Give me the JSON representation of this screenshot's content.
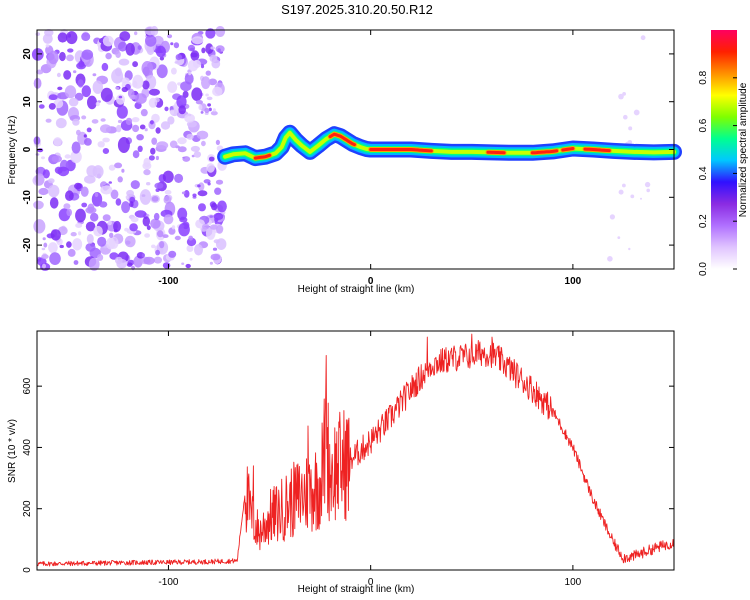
{
  "title": "S197.2025.310.20.50.R12",
  "chart_data": [
    {
      "type": "heatmap",
      "xlabel": "Height of straight line (km)",
      "ylabel": "Frequency (Hz)",
      "xlim": [
        -165,
        150
      ],
      "ylim": [
        -25,
        25
      ],
      "x_ticks": [
        -100,
        0,
        100
      ],
      "y_ticks": [
        -20,
        -10,
        0,
        10,
        20
      ],
      "colorbar": {
        "label": "Normalized spectral amplitude",
        "range": [
          0,
          1
        ],
        "ticks": [
          0.0,
          0.2,
          0.4,
          0.6,
          0.8
        ],
        "colormap": [
          "#ffffff",
          "#e0c4ff",
          "#b070ff",
          "#8a2be2",
          "#3010ff",
          "#00c8ff",
          "#00ff90",
          "#7fff00",
          "#ffff00",
          "#ff9000",
          "#ff2000",
          "#ff0060"
        ]
      },
      "noise_region_x": [
        -165,
        -73
      ],
      "ridge": {
        "x": [
          -72,
          -68,
          -62,
          -57,
          -52,
          -47,
          -44,
          -42,
          -40,
          -37,
          -34,
          -30,
          -26,
          -22,
          -18,
          -15,
          -12,
          -9,
          -5,
          -2,
          0,
          10,
          20,
          30,
          40,
          50,
          60,
          70,
          80,
          90,
          100,
          110,
          120,
          130,
          140,
          150
        ],
        "freq": [
          -1.5,
          -1.0,
          -0.8,
          -1.8,
          -1.5,
          -0.8,
          0.5,
          2.5,
          3.5,
          2.0,
          0.8,
          -0.5,
          0.8,
          2.2,
          3.2,
          2.8,
          2.0,
          1.2,
          0.5,
          0.1,
          0.0,
          0.0,
          0.0,
          -0.3,
          -0.5,
          -0.5,
          -0.6,
          -0.7,
          -0.7,
          -0.4,
          0.2,
          0.0,
          -0.3,
          -0.5,
          -0.6,
          -0.5
        ],
        "peak_amplitude_segments": [
          [
            -57,
            -50
          ],
          [
            -20,
            -8
          ],
          [
            0,
            30
          ],
          [
            58,
            66
          ],
          [
            80,
            92
          ],
          [
            95,
            100
          ],
          [
            106,
            118
          ]
        ]
      }
    },
    {
      "type": "line",
      "xlabel": "Height of straight line (km)",
      "ylabel": "SNR (10 * v/v)",
      "xlim": [
        -165,
        150
      ],
      "ylim": [
        0,
        780
      ],
      "x_ticks": [
        -100,
        0,
        100
      ],
      "y_ticks": [
        0,
        200,
        400,
        600
      ],
      "color": "#ee2222",
      "series": [
        {
          "name": "SNR",
          "x": [
            -165,
            -140,
            -120,
            -100,
            -80,
            -66,
            -62,
            -59,
            -55,
            -50,
            -45,
            -40,
            -35,
            -30,
            -25,
            -22,
            -20,
            -15,
            -10,
            -5,
            0,
            10,
            20,
            30,
            40,
            50,
            55,
            60,
            65,
            70,
            75,
            80,
            90,
            100,
            110,
            120,
            125,
            130,
            140,
            150
          ],
          "values": [
            20,
            22,
            24,
            25,
            27,
            30,
            260,
            170,
            120,
            170,
            190,
            220,
            240,
            260,
            280,
            420,
            320,
            340,
            360,
            390,
            420,
            500,
            590,
            670,
            690,
            700,
            710,
            705,
            680,
            650,
            620,
            590,
            520,
            400,
            230,
            90,
            40,
            45,
            70,
            90
          ]
        }
      ],
      "spikes": [
        {
          "x": -58,
          "value": 340
        },
        {
          "x": -22,
          "value": 700
        },
        {
          "x": -31,
          "value": 470
        },
        {
          "x": 28,
          "value": 760
        },
        {
          "x": 50,
          "value": 770
        },
        {
          "x": 60,
          "value": 760
        }
      ]
    }
  ]
}
